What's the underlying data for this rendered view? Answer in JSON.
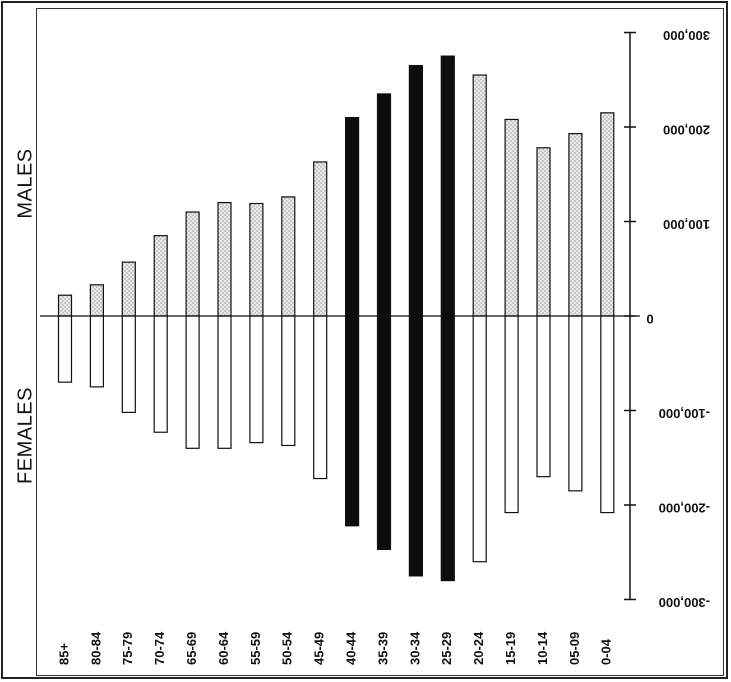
{
  "labels": {
    "males": "MALES",
    "females": "FEMALES"
  },
  "chart_data": {
    "type": "bar",
    "orientation": "vertical",
    "categories": [
      "85+",
      "80-84",
      "75-79",
      "70-74",
      "65-69",
      "60-64",
      "55-59",
      "50-54",
      "45-49",
      "40-44",
      "35-39",
      "30-34",
      "25-29",
      "20-24",
      "15-19",
      "10-14",
      "05-09",
      "0-04"
    ],
    "series": [
      {
        "values": [
          22000,
          33000,
          57000,
          85000,
          110000,
          120000,
          119000,
          126000,
          163000,
          210000,
          235000,
          265000,
          275000,
          255000,
          208000,
          178000,
          193000,
          215000
        ]
      },
      {
        "values": [
          -70000,
          -75000,
          -102000,
          -123000,
          -140000,
          -140000,
          -134000,
          -137000,
          -172000,
          -222000,
          -247000,
          -275000,
          -280000,
          -260000,
          -208000,
          -170000,
          -185000,
          -208000
        ]
      }
    ],
    "highlighted_categories": [
      "40-44",
      "35-39",
      "30-34",
      "25-29"
    ],
    "y_ticks": [
      "300,000",
      "200,000",
      "100,000",
      "0",
      "-100,000",
      "-200,000",
      "-300,000"
    ],
    "y_tick_values": [
      300000,
      200000,
      100000,
      0,
      -100000,
      -200000,
      -300000
    ],
    "ylim": [
      -300000,
      300000
    ],
    "colors": {
      "dotted_fill": "#c8c8c8",
      "highlight": "#0d0d0d",
      "female_fill": "#ffffff"
    }
  }
}
